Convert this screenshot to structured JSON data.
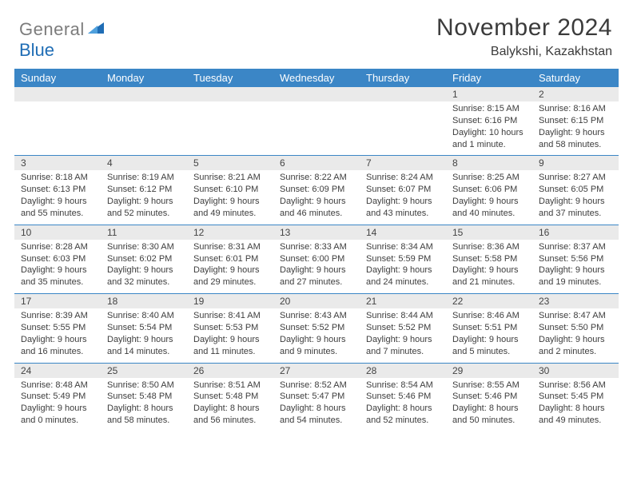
{
  "logo": {
    "general": "General",
    "blue": "Blue"
  },
  "title": "November 2024",
  "location": "Balykshi, Kazakhstan",
  "colors": {
    "header_bg": "#3b86c6",
    "header_text": "#ffffff",
    "num_bg": "#eaeaea",
    "text": "#3d3d3d",
    "logo_gray": "#7c7c7c",
    "logo_blue": "#1f6db5"
  },
  "day_headers": [
    "Sunday",
    "Monday",
    "Tuesday",
    "Wednesday",
    "Thursday",
    "Friday",
    "Saturday"
  ],
  "weeks": [
    [
      null,
      null,
      null,
      null,
      null,
      {
        "n": "1",
        "sr": "Sunrise: 8:15 AM",
        "ss": "Sunset: 6:16 PM",
        "d1": "Daylight: 10 hours",
        "d2": "and 1 minute."
      },
      {
        "n": "2",
        "sr": "Sunrise: 8:16 AM",
        "ss": "Sunset: 6:15 PM",
        "d1": "Daylight: 9 hours",
        "d2": "and 58 minutes."
      }
    ],
    [
      {
        "n": "3",
        "sr": "Sunrise: 8:18 AM",
        "ss": "Sunset: 6:13 PM",
        "d1": "Daylight: 9 hours",
        "d2": "and 55 minutes."
      },
      {
        "n": "4",
        "sr": "Sunrise: 8:19 AM",
        "ss": "Sunset: 6:12 PM",
        "d1": "Daylight: 9 hours",
        "d2": "and 52 minutes."
      },
      {
        "n": "5",
        "sr": "Sunrise: 8:21 AM",
        "ss": "Sunset: 6:10 PM",
        "d1": "Daylight: 9 hours",
        "d2": "and 49 minutes."
      },
      {
        "n": "6",
        "sr": "Sunrise: 8:22 AM",
        "ss": "Sunset: 6:09 PM",
        "d1": "Daylight: 9 hours",
        "d2": "and 46 minutes."
      },
      {
        "n": "7",
        "sr": "Sunrise: 8:24 AM",
        "ss": "Sunset: 6:07 PM",
        "d1": "Daylight: 9 hours",
        "d2": "and 43 minutes."
      },
      {
        "n": "8",
        "sr": "Sunrise: 8:25 AM",
        "ss": "Sunset: 6:06 PM",
        "d1": "Daylight: 9 hours",
        "d2": "and 40 minutes."
      },
      {
        "n": "9",
        "sr": "Sunrise: 8:27 AM",
        "ss": "Sunset: 6:05 PM",
        "d1": "Daylight: 9 hours",
        "d2": "and 37 minutes."
      }
    ],
    [
      {
        "n": "10",
        "sr": "Sunrise: 8:28 AM",
        "ss": "Sunset: 6:03 PM",
        "d1": "Daylight: 9 hours",
        "d2": "and 35 minutes."
      },
      {
        "n": "11",
        "sr": "Sunrise: 8:30 AM",
        "ss": "Sunset: 6:02 PM",
        "d1": "Daylight: 9 hours",
        "d2": "and 32 minutes."
      },
      {
        "n": "12",
        "sr": "Sunrise: 8:31 AM",
        "ss": "Sunset: 6:01 PM",
        "d1": "Daylight: 9 hours",
        "d2": "and 29 minutes."
      },
      {
        "n": "13",
        "sr": "Sunrise: 8:33 AM",
        "ss": "Sunset: 6:00 PM",
        "d1": "Daylight: 9 hours",
        "d2": "and 27 minutes."
      },
      {
        "n": "14",
        "sr": "Sunrise: 8:34 AM",
        "ss": "Sunset: 5:59 PM",
        "d1": "Daylight: 9 hours",
        "d2": "and 24 minutes."
      },
      {
        "n": "15",
        "sr": "Sunrise: 8:36 AM",
        "ss": "Sunset: 5:58 PM",
        "d1": "Daylight: 9 hours",
        "d2": "and 21 minutes."
      },
      {
        "n": "16",
        "sr": "Sunrise: 8:37 AM",
        "ss": "Sunset: 5:56 PM",
        "d1": "Daylight: 9 hours",
        "d2": "and 19 minutes."
      }
    ],
    [
      {
        "n": "17",
        "sr": "Sunrise: 8:39 AM",
        "ss": "Sunset: 5:55 PM",
        "d1": "Daylight: 9 hours",
        "d2": "and 16 minutes."
      },
      {
        "n": "18",
        "sr": "Sunrise: 8:40 AM",
        "ss": "Sunset: 5:54 PM",
        "d1": "Daylight: 9 hours",
        "d2": "and 14 minutes."
      },
      {
        "n": "19",
        "sr": "Sunrise: 8:41 AM",
        "ss": "Sunset: 5:53 PM",
        "d1": "Daylight: 9 hours",
        "d2": "and 11 minutes."
      },
      {
        "n": "20",
        "sr": "Sunrise: 8:43 AM",
        "ss": "Sunset: 5:52 PM",
        "d1": "Daylight: 9 hours",
        "d2": "and 9 minutes."
      },
      {
        "n": "21",
        "sr": "Sunrise: 8:44 AM",
        "ss": "Sunset: 5:52 PM",
        "d1": "Daylight: 9 hours",
        "d2": "and 7 minutes."
      },
      {
        "n": "22",
        "sr": "Sunrise: 8:46 AM",
        "ss": "Sunset: 5:51 PM",
        "d1": "Daylight: 9 hours",
        "d2": "and 5 minutes."
      },
      {
        "n": "23",
        "sr": "Sunrise: 8:47 AM",
        "ss": "Sunset: 5:50 PM",
        "d1": "Daylight: 9 hours",
        "d2": "and 2 minutes."
      }
    ],
    [
      {
        "n": "24",
        "sr": "Sunrise: 8:48 AM",
        "ss": "Sunset: 5:49 PM",
        "d1": "Daylight: 9 hours",
        "d2": "and 0 minutes."
      },
      {
        "n": "25",
        "sr": "Sunrise: 8:50 AM",
        "ss": "Sunset: 5:48 PM",
        "d1": "Daylight: 8 hours",
        "d2": "and 58 minutes."
      },
      {
        "n": "26",
        "sr": "Sunrise: 8:51 AM",
        "ss": "Sunset: 5:48 PM",
        "d1": "Daylight: 8 hours",
        "d2": "and 56 minutes."
      },
      {
        "n": "27",
        "sr": "Sunrise: 8:52 AM",
        "ss": "Sunset: 5:47 PM",
        "d1": "Daylight: 8 hours",
        "d2": "and 54 minutes."
      },
      {
        "n": "28",
        "sr": "Sunrise: 8:54 AM",
        "ss": "Sunset: 5:46 PM",
        "d1": "Daylight: 8 hours",
        "d2": "and 52 minutes."
      },
      {
        "n": "29",
        "sr": "Sunrise: 8:55 AM",
        "ss": "Sunset: 5:46 PM",
        "d1": "Daylight: 8 hours",
        "d2": "and 50 minutes."
      },
      {
        "n": "30",
        "sr": "Sunrise: 8:56 AM",
        "ss": "Sunset: 5:45 PM",
        "d1": "Daylight: 8 hours",
        "d2": "and 49 minutes."
      }
    ]
  ]
}
